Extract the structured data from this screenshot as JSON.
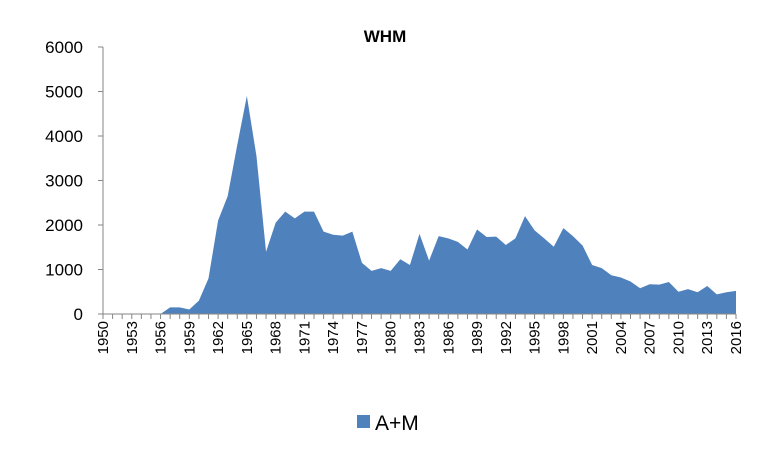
{
  "chart_data": {
    "type": "area",
    "title": "WHM",
    "xlabel": "",
    "ylabel": "",
    "x": [
      1950,
      1951,
      1952,
      1953,
      1954,
      1955,
      1956,
      1957,
      1958,
      1959,
      1960,
      1961,
      1962,
      1963,
      1964,
      1965,
      1966,
      1967,
      1968,
      1969,
      1970,
      1971,
      1972,
      1973,
      1974,
      1975,
      1976,
      1977,
      1978,
      1979,
      1980,
      1981,
      1982,
      1983,
      1984,
      1985,
      1986,
      1987,
      1988,
      1989,
      1990,
      1991,
      1992,
      1993,
      1994,
      1995,
      1996,
      1997,
      1998,
      1999,
      2000,
      2001,
      2002,
      2003,
      2004,
      2005,
      2006,
      2007,
      2008,
      2009,
      2010,
      2011,
      2012,
      2013,
      2014,
      2015,
      2016
    ],
    "x_tick_labels": [
      "1950",
      "1953",
      "1956",
      "1959",
      "1962",
      "1965",
      "1968",
      "1971",
      "1974",
      "1977",
      "1980",
      "1983",
      "1986",
      "1989",
      "1992",
      "1995",
      "1998",
      "2001",
      "2004",
      "2007",
      "2010",
      "2013",
      "2016"
    ],
    "y_tick_labels": [
      "0",
      "1000",
      "2000",
      "3000",
      "4000",
      "5000",
      "6000"
    ],
    "ylim": [
      0,
      6000
    ],
    "grid": false,
    "legend_position": "bottom",
    "color": "#4f81bd",
    "series": [
      {
        "name": "A+M",
        "values": [
          0,
          0,
          0,
          0,
          0,
          0,
          0,
          150,
          150,
          100,
          300,
          800,
          2100,
          2650,
          3800,
          4900,
          3550,
          1400,
          2050,
          2300,
          2150,
          2300,
          2300,
          1850,
          1780,
          1760,
          1850,
          1150,
          970,
          1030,
          970,
          1230,
          1100,
          1800,
          1200,
          1750,
          1700,
          1620,
          1450,
          1900,
          1730,
          1740,
          1550,
          1700,
          2200,
          1880,
          1700,
          1510,
          1930,
          1750,
          1540,
          1100,
          1030,
          870,
          820,
          730,
          580,
          670,
          660,
          720,
          500,
          560,
          490,
          630,
          440,
          490,
          520
        ]
      }
    ]
  }
}
